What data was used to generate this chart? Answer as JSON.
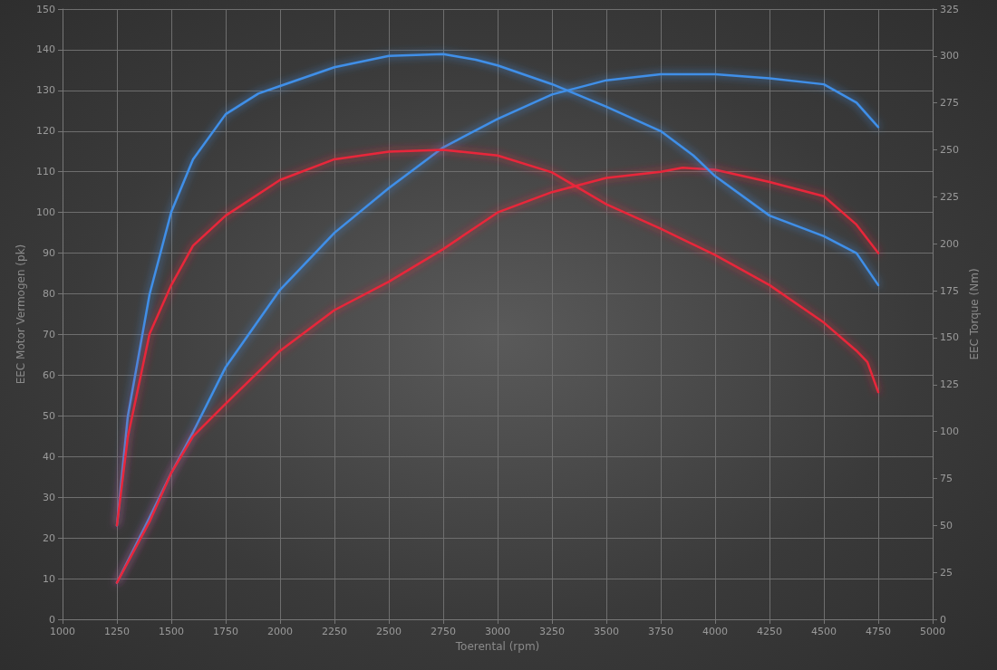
{
  "chart_data": {
    "type": "line",
    "xlabel": "Toerental (rpm)",
    "ylabel": "EEC Motor Vermogen (pk)",
    "y2label": "EEC Torque (Nm)",
    "xlim": [
      1000,
      5000
    ],
    "xticks": [
      1000,
      1250,
      1500,
      1750,
      2000,
      2250,
      2500,
      2750,
      3000,
      3250,
      3500,
      3750,
      4000,
      4250,
      4500,
      4750,
      5000
    ],
    "ylim": [
      0,
      150
    ],
    "yticks": [
      0,
      10,
      20,
      30,
      40,
      50,
      60,
      70,
      80,
      90,
      100,
      110,
      120,
      130,
      140,
      150
    ],
    "y2lim": [
      0,
      325
    ],
    "y2ticks": [
      0,
      25,
      50,
      75,
      100,
      125,
      150,
      175,
      200,
      225,
      250,
      275,
      300,
      325
    ],
    "grid": true,
    "marker": "none",
    "line_style": "solid",
    "series": [
      {
        "color": "#3f8fe8",
        "axis": "y",
        "x": [
          1250,
          1400,
          1500,
          1600,
          1750,
          2000,
          2250,
          2500,
          2750,
          3000,
          3250,
          3500,
          3750,
          4000,
          4250,
          4500,
          4650,
          4750
        ],
        "values": [
          9,
          25,
          36,
          46,
          62,
          81,
          95,
          106,
          116,
          123,
          129,
          132.5,
          134,
          134,
          133,
          131.5,
          127,
          121
        ]
      },
      {
        "color": "#e8283a",
        "axis": "y",
        "x": [
          1250,
          1400,
          1500,
          1600,
          1750,
          2000,
          2250,
          2500,
          2750,
          3000,
          3250,
          3500,
          3750,
          3850,
          4000,
          4250,
          4500,
          4650,
          4750
        ],
        "values": [
          9,
          24,
          36,
          45,
          53,
          66,
          76,
          83,
          91,
          100,
          105,
          108.5,
          110,
          111,
          110.5,
          107.5,
          104,
          97,
          90
        ]
      },
      {
        "color": "#3f8fe8",
        "axis": "y2",
        "x": [
          1250,
          1300,
          1400,
          1500,
          1600,
          1750,
          1900,
          2000,
          2250,
          2500,
          2750,
          2900,
          3000,
          3250,
          3500,
          3750,
          3900,
          4000,
          4250,
          4500,
          4650,
          4750
        ],
        "values": [
          50,
          108,
          173,
          217,
          245,
          269,
          280,
          284,
          294,
          300,
          301,
          298,
          295,
          285,
          273,
          260,
          247,
          236,
          215,
          204,
          195,
          178
        ]
      },
      {
        "color": "#e8283a",
        "axis": "y2",
        "x": [
          1250,
          1300,
          1400,
          1500,
          1600,
          1750,
          2000,
          2250,
          2500,
          2750,
          3000,
          3250,
          3500,
          3750,
          4000,
          4250,
          4500,
          4650,
          4700,
          4750
        ],
        "values": [
          50,
          97,
          152,
          178,
          199,
          215,
          234,
          245,
          249,
          250,
          247,
          238,
          221,
          208,
          194,
          178,
          158,
          143,
          137,
          121
        ]
      }
    ]
  }
}
